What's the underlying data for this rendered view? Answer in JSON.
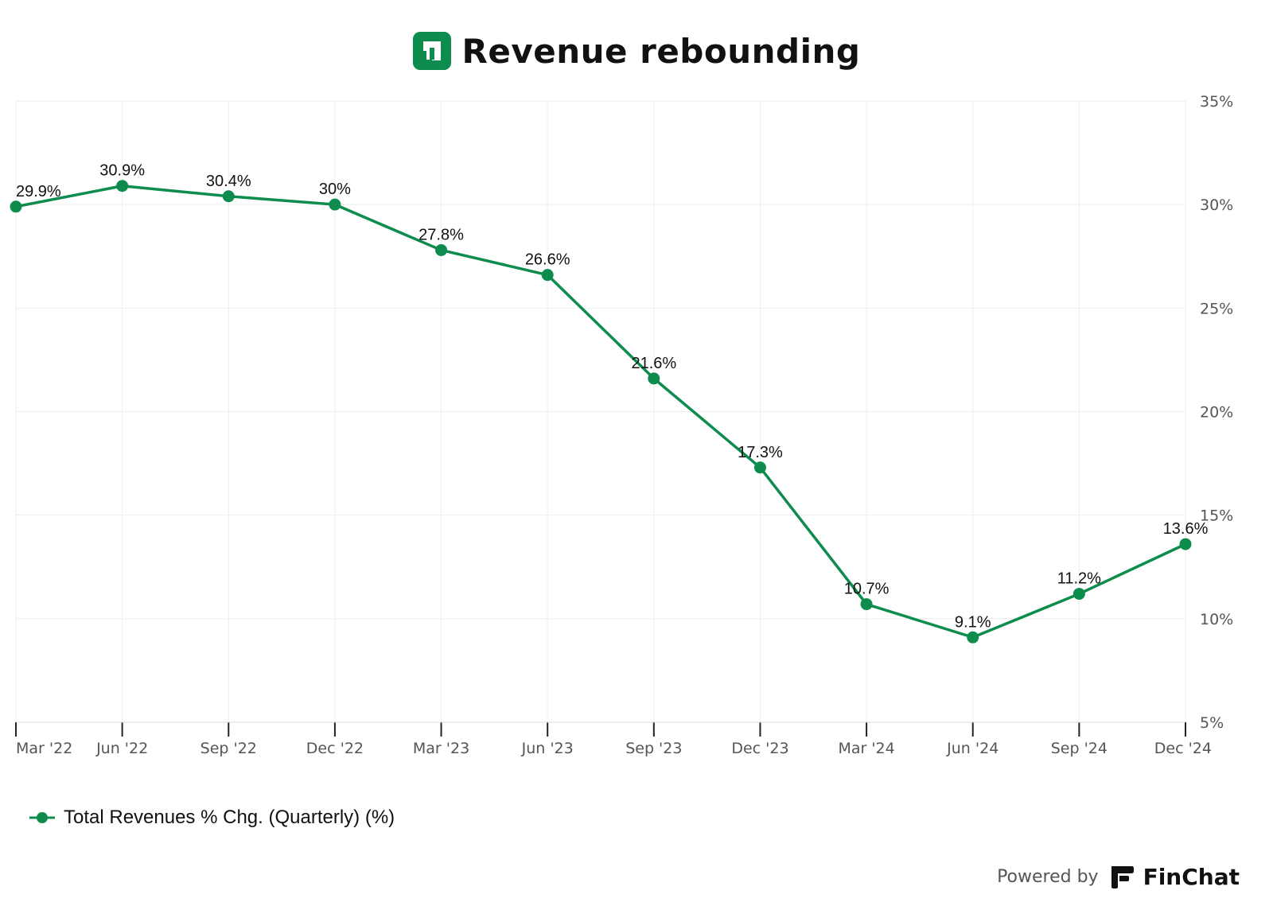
{
  "title": "Revenue rebounding",
  "footer": {
    "powered_by": "Powered by",
    "brand": "FinChat"
  },
  "colors": {
    "series": "#0d8c4e",
    "grid": "#eeeeee",
    "axis_text": "#555555",
    "label_text": "#111111",
    "logo": "#0d8c4e"
  },
  "icons": {
    "title_logo": "company-logo-icon",
    "brand_logo": "finchat-logo-icon"
  },
  "chart_data": {
    "type": "line",
    "title": "Revenue rebounding",
    "categories": [
      "Mar '22",
      "Jun '22",
      "Sep '22",
      "Dec '22",
      "Mar '23",
      "Jun '23",
      "Sep '23",
      "Dec '23",
      "Mar '24",
      "Jun '24",
      "Sep '24",
      "Dec '24"
    ],
    "series": [
      {
        "name": "Total Revenues % Chg. (Quarterly) (%)",
        "values": [
          29.9,
          30.9,
          30.4,
          30,
          27.8,
          26.6,
          21.6,
          17.3,
          10.7,
          9.1,
          11.2,
          13.6
        ],
        "labels": [
          "29.9%",
          "30.9%",
          "30.4%",
          "30%",
          "27.8%",
          "26.6%",
          "21.6%",
          "17.3%",
          "10.7%",
          "9.1%",
          "11.2%",
          "13.6%"
        ]
      }
    ],
    "y_ticks": [
      "5%",
      "10%",
      "15%",
      "20%",
      "25%",
      "30%",
      "35%"
    ],
    "y_tick_values": [
      5,
      10,
      15,
      20,
      25,
      30,
      35
    ],
    "ylim": [
      5,
      35
    ],
    "y_axis_side": "right",
    "grid": true,
    "legend_position": "bottom-left"
  }
}
